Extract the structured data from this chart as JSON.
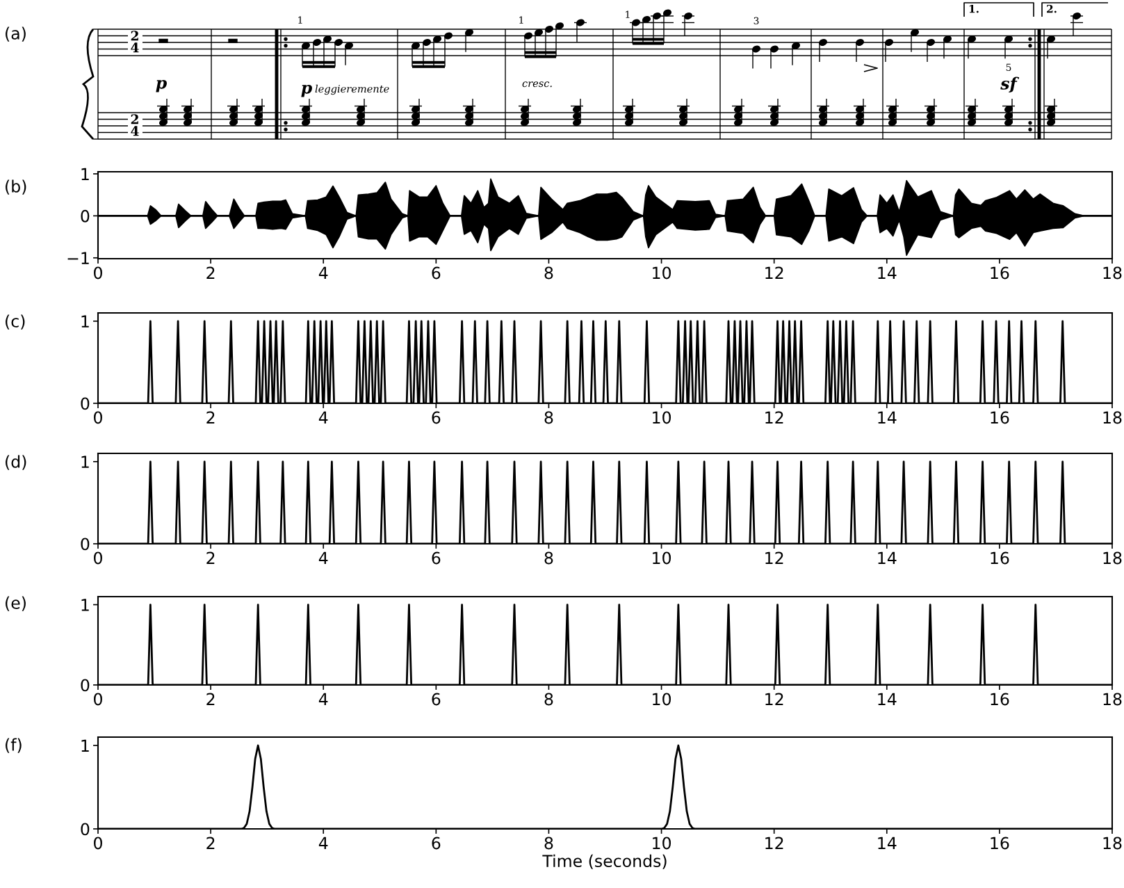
{
  "chart_data": [
    {
      "type": "other",
      "title": "(a)",
      "annotations": [
        "2",
        "4",
        "2",
        "4",
        "p",
        "p",
        "leggieremente",
        "cresc.",
        "sf",
        "1",
        "1",
        "1",
        "3",
        "5",
        "1.",
        "2."
      ]
    },
    {
      "type": "line",
      "title": "(b)",
      "xlim": [
        0,
        18
      ],
      "xticks": [
        0,
        2,
        4,
        6,
        8,
        10,
        12,
        14,
        16,
        18
      ],
      "ylim": [
        -1.02,
        1.05
      ],
      "yticks": [
        {
          "value": -1,
          "label": "−1"
        },
        0,
        1
      ],
      "x": [
        0,
        0.88,
        0.93,
        1.02,
        1.12,
        1.38,
        1.43,
        1.55,
        1.65,
        1.86,
        1.91,
        2.02,
        2.12,
        2.33,
        2.41,
        2.52,
        2.6,
        2.8,
        2.84,
        2.95,
        3.1,
        3.25,
        3.33,
        3.45,
        3.68,
        3.72,
        3.9,
        4.05,
        4.17,
        4.28,
        4.42,
        4.58,
        4.62,
        4.8,
        4.95,
        5.1,
        5.2,
        5.4,
        5.5,
        5.53,
        5.7,
        5.85,
        6.0,
        6.12,
        6.25,
        6.45,
        6.5,
        6.62,
        6.74,
        6.85,
        6.93,
        6.97,
        7.1,
        7.3,
        7.46,
        7.6,
        7.82,
        7.86,
        8.05,
        8.25,
        8.33,
        8.55,
        8.7,
        8.85,
        9.04,
        9.2,
        9.3,
        9.5,
        9.68,
        9.72,
        9.77,
        9.9,
        10.2,
        10.28,
        10.6,
        10.85,
        10.96,
        11.13,
        11.17,
        11.45,
        11.63,
        11.75,
        11.85,
        12.0,
        12.04,
        12.3,
        12.49,
        12.62,
        12.72,
        12.92,
        12.97,
        13.2,
        13.41,
        13.55,
        13.65,
        13.83,
        13.88,
        14.0,
        14.11,
        14.22,
        14.3,
        14.35,
        14.55,
        14.79,
        14.95,
        15.18,
        15.22,
        15.28,
        15.5,
        15.67,
        15.75,
        15.95,
        16.18,
        16.3,
        16.45,
        16.6,
        16.72,
        16.95,
        17.13,
        17.34,
        17.5,
        18
      ],
      "series": [
        {
          "color": "#000000",
          "values": [
            0,
            0,
            0,
            0,
            0,
            0,
            0,
            0,
            0,
            0,
            0,
            0,
            0,
            0,
            0,
            0,
            0,
            0,
            0,
            0,
            0,
            0,
            0,
            0,
            0,
            0,
            0,
            0,
            0,
            0,
            0,
            0,
            0,
            0,
            0,
            0,
            0,
            0,
            0,
            0,
            0,
            0,
            0,
            0,
            0,
            0,
            0,
            0,
            0,
            0,
            0,
            0,
            0,
            0,
            0,
            0,
            0,
            0,
            0,
            0,
            0,
            0,
            0,
            0,
            0,
            0,
            0,
            0,
            0,
            0,
            0,
            0,
            0,
            0,
            0,
            0,
            0,
            0,
            0,
            0,
            0,
            0,
            0,
            0,
            0,
            0,
            0,
            0,
            0,
            0,
            0,
            0,
            0,
            0,
            0,
            0,
            0,
            0,
            0,
            0,
            0,
            0,
            0,
            0,
            0,
            0,
            0,
            0,
            0,
            0,
            0,
            0,
            0,
            0,
            0,
            0,
            0,
            0,
            0,
            0,
            0,
            0
          ],
          "upper": [
            0,
            0,
            0.24,
            0.15,
            0,
            0,
            0.28,
            0.12,
            0,
            0,
            0.34,
            0.15,
            0,
            0,
            0.4,
            0.15,
            0,
            0,
            0.3,
            0.33,
            0.35,
            0.35,
            0.38,
            0.05,
            0,
            0.36,
            0.38,
            0.45,
            0.71,
            0.45,
            0.08,
            0,
            0.5,
            0.52,
            0.55,
            0.8,
            0.4,
            0.05,
            0,
            0.6,
            0.45,
            0.45,
            0.72,
            0.3,
            0,
            0,
            0.48,
            0.3,
            0.6,
            0.2,
            0.3,
            0.88,
            0.45,
            0.3,
            0.48,
            0.06,
            0,
            0.68,
            0.4,
            0.15,
            0.3,
            0.36,
            0.44,
            0.52,
            0.52,
            0.56,
            0.44,
            0.1,
            0,
            0.5,
            0.72,
            0.45,
            0.15,
            0.36,
            0.34,
            0.36,
            0.04,
            0,
            0.36,
            0.4,
            0.68,
            0.2,
            0,
            0,
            0.4,
            0.48,
            0.76,
            0.35,
            0,
            0,
            0.64,
            0.48,
            0.67,
            0.15,
            0,
            0,
            0.5,
            0.3,
            0.5,
            0.1,
            0.5,
            0.84,
            0.45,
            0.6,
            0.1,
            0,
            0.5,
            0.64,
            0.3,
            0.25,
            0.36,
            0.44,
            0.6,
            0.4,
            0.62,
            0.4,
            0.52,
            0.3,
            0.24,
            0.05,
            0,
            0
          ],
          "lower": [
            0,
            0,
            -0.2,
            -0.12,
            0,
            0,
            -0.28,
            -0.12,
            0,
            0,
            -0.3,
            -0.15,
            0,
            0,
            -0.3,
            -0.12,
            0,
            0,
            -0.3,
            -0.3,
            -0.32,
            -0.3,
            -0.32,
            -0.05,
            0,
            -0.3,
            -0.35,
            -0.45,
            -0.76,
            -0.5,
            -0.08,
            0,
            -0.5,
            -0.55,
            -0.55,
            -0.79,
            -0.45,
            -0.05,
            0,
            -0.6,
            -0.5,
            -0.5,
            -0.68,
            -0.35,
            0,
            0,
            -0.44,
            -0.35,
            -0.64,
            -0.2,
            -0.3,
            -0.83,
            -0.5,
            -0.3,
            -0.44,
            -0.06,
            0,
            -0.56,
            -0.4,
            -0.15,
            -0.3,
            -0.4,
            -0.5,
            -0.58,
            -0.58,
            -0.55,
            -0.5,
            -0.1,
            0,
            -0.5,
            -0.76,
            -0.45,
            -0.15,
            -0.3,
            -0.34,
            -0.32,
            -0.04,
            0,
            -0.36,
            -0.42,
            -0.64,
            -0.2,
            0,
            0,
            -0.45,
            -0.5,
            -0.68,
            -0.35,
            0,
            0,
            -0.6,
            -0.5,
            -0.66,
            -0.15,
            0,
            0,
            -0.4,
            -0.3,
            -0.48,
            -0.1,
            -0.5,
            -0.94,
            -0.45,
            -0.52,
            -0.1,
            0,
            -0.45,
            -0.52,
            -0.3,
            -0.25,
            -0.36,
            -0.42,
            -0.56,
            -0.4,
            -0.72,
            -0.4,
            -0.36,
            -0.3,
            -0.28,
            -0.05,
            0,
            0
          ]
        }
      ]
    },
    {
      "type": "line",
      "title": "(c)",
      "xlim": [
        0,
        18
      ],
      "xticks": [
        0,
        2,
        4,
        6,
        8,
        10,
        12,
        14,
        16,
        18
      ],
      "ylim": [
        0,
        1.1
      ],
      "yticks": [
        0,
        1
      ],
      "x": [
        0,
        0.89,
        0.93,
        0.97,
        1.38,
        1.42,
        1.46,
        1.85,
        1.89,
        1.93,
        2.32,
        2.36,
        2.4,
        2.8,
        2.84,
        2.88,
        2.91,
        2.95,
        2.99,
        3.02,
        3.06,
        3.1,
        3.12,
        3.16,
        3.2,
        3.24,
        3.28,
        3.32,
        3.69,
        3.73,
        3.77,
        3.8,
        3.84,
        3.88,
        3.91,
        3.95,
        3.99,
        4.01,
        4.05,
        4.09,
        4.11,
        4.15,
        4.19,
        4.58,
        4.62,
        4.66,
        4.69,
        4.73,
        4.77,
        4.8,
        4.84,
        4.88,
        4.91,
        4.95,
        4.99,
        5.02,
        5.06,
        5.1,
        5.48,
        5.52,
        5.56,
        5.6,
        5.64,
        5.68,
        5.7,
        5.74,
        5.78,
        5.82,
        5.86,
        5.9,
        5.93,
        5.97,
        6.01,
        6.42,
        6.46,
        6.5,
        6.65,
        6.69,
        6.73,
        6.87,
        6.91,
        6.95,
        7.12,
        7.16,
        7.2,
        7.35,
        7.39,
        7.43,
        7.82,
        7.86,
        7.9,
        8.29,
        8.33,
        8.37,
        8.54,
        8.58,
        8.62,
        8.75,
        8.79,
        8.83,
        8.97,
        9.01,
        9.05,
        9.21,
        9.25,
        9.29,
        9.7,
        9.74,
        9.78,
        10.26,
        10.3,
        10.34,
        10.38,
        10.42,
        10.46,
        10.48,
        10.52,
        10.56,
        10.6,
        10.64,
        10.68,
        10.72,
        10.76,
        10.8,
        11.15,
        11.19,
        11.23,
        11.26,
        11.3,
        11.34,
        11.36,
        11.4,
        11.44,
        11.47,
        11.51,
        11.55,
        11.57,
        11.61,
        11.65,
        12.02,
        12.06,
        12.1,
        12.12,
        12.16,
        12.2,
        12.23,
        12.27,
        12.31,
        12.33,
        12.37,
        12.41,
        12.44,
        12.48,
        12.52,
        12.91,
        12.95,
        12.99,
        13.01,
        13.05,
        13.09,
        13.13,
        13.17,
        13.21,
        13.24,
        13.28,
        13.32,
        13.36,
        13.4,
        13.44,
        13.8,
        13.84,
        13.88,
        14.02,
        14.06,
        14.1,
        14.26,
        14.3,
        14.34,
        14.49,
        14.53,
        14.57,
        14.73,
        14.77,
        14.81,
        15.19,
        15.23,
        15.27,
        15.66,
        15.7,
        15.74,
        15.9,
        15.94,
        15.98,
        16.13,
        16.17,
        16.21,
        16.35,
        16.39,
        16.43,
        16.6,
        16.64,
        16.68,
        17.08,
        17.12,
        17.16,
        18
      ],
      "series": [
        {
          "color": "#000000",
          "values": [
            0,
            0,
            1,
            0,
            0,
            1,
            0,
            0,
            1,
            0,
            0,
            1,
            0,
            0,
            1,
            0,
            0,
            1,
            0,
            0,
            1,
            0,
            0,
            1,
            0,
            0,
            1,
            0,
            0,
            1,
            0,
            0,
            1,
            0,
            0,
            1,
            0,
            0,
            1,
            0,
            0,
            1,
            0,
            0,
            1,
            0,
            0,
            1,
            0,
            0,
            1,
            0,
            0,
            1,
            0,
            0,
            1,
            0,
            0,
            1,
            0,
            0,
            1,
            0,
            0,
            1,
            0,
            0,
            1,
            0,
            0,
            1,
            0,
            0,
            1,
            0,
            0,
            1,
            0,
            0,
            1,
            0,
            0,
            1,
            0,
            0,
            1,
            0,
            0,
            1,
            0,
            0,
            1,
            0,
            0,
            1,
            0,
            0,
            1,
            0,
            0,
            1,
            0,
            0,
            1,
            0,
            0,
            1,
            0,
            0,
            1,
            0,
            0,
            1,
            0,
            0,
            1,
            0,
            0,
            1,
            0,
            0,
            1,
            0,
            0,
            1,
            0,
            0,
            1,
            0,
            0,
            1,
            0,
            0,
            1,
            0,
            0,
            1,
            0,
            0,
            1,
            0,
            0,
            1,
            0,
            0,
            1,
            0,
            0,
            1,
            0,
            0,
            1,
            0,
            0,
            1,
            0,
            0,
            1,
            0,
            0,
            1,
            0,
            0,
            1,
            0,
            0,
            1,
            0,
            0,
            1,
            0,
            0,
            1,
            0,
            0,
            1,
            0,
            0,
            1,
            0,
            0,
            1,
            0,
            0,
            1,
            0,
            0,
            1,
            0,
            0,
            1,
            0,
            0,
            1,
            0,
            0,
            1,
            0,
            0,
            1,
            0,
            0,
            1,
            0,
            0
          ]
        }
      ]
    },
    {
      "type": "line",
      "title": "(d)",
      "xlim": [
        0,
        18
      ],
      "xticks": [
        0,
        2,
        4,
        6,
        8,
        10,
        12,
        14,
        16,
        18
      ],
      "ylim": [
        0,
        1.1
      ],
      "yticks": [
        0,
        1
      ],
      "x": [
        0,
        0.89,
        0.93,
        0.97,
        1.38,
        1.42,
        1.46,
        1.85,
        1.89,
        1.93,
        2.32,
        2.36,
        2.4,
        2.8,
        2.84,
        2.88,
        3.24,
        3.28,
        3.32,
        3.69,
        3.73,
        3.77,
        4.11,
        4.15,
        4.19,
        4.58,
        4.62,
        4.66,
        5.02,
        5.06,
        5.1,
        5.48,
        5.52,
        5.56,
        5.93,
        5.97,
        6.01,
        6.42,
        6.46,
        6.5,
        6.87,
        6.91,
        6.95,
        7.35,
        7.39,
        7.43,
        7.82,
        7.86,
        7.9,
        8.29,
        8.33,
        8.37,
        8.75,
        8.79,
        8.83,
        9.21,
        9.25,
        9.29,
        9.7,
        9.74,
        9.78,
        10.26,
        10.3,
        10.34,
        10.72,
        10.76,
        10.8,
        11.15,
        11.19,
        11.23,
        11.57,
        11.61,
        11.65,
        12.02,
        12.06,
        12.1,
        12.44,
        12.48,
        12.52,
        12.91,
        12.95,
        12.99,
        13.36,
        13.4,
        13.44,
        13.8,
        13.84,
        13.88,
        14.26,
        14.3,
        14.34,
        14.73,
        14.77,
        14.81,
        15.19,
        15.23,
        15.27,
        15.66,
        15.7,
        15.74,
        16.13,
        16.17,
        16.21,
        16.6,
        16.64,
        16.68,
        17.08,
        17.12,
        17.16,
        18
      ],
      "series": [
        {
          "color": "#000000",
          "values": [
            0,
            0,
            1,
            0,
            0,
            1,
            0,
            0,
            1,
            0,
            0,
            1,
            0,
            0,
            1,
            0,
            0,
            1,
            0,
            0,
            1,
            0,
            0,
            1,
            0,
            0,
            1,
            0,
            0,
            1,
            0,
            0,
            1,
            0,
            0,
            1,
            0,
            0,
            1,
            0,
            0,
            1,
            0,
            0,
            1,
            0,
            0,
            1,
            0,
            0,
            1,
            0,
            0,
            1,
            0,
            0,
            1,
            0,
            0,
            1,
            0,
            0,
            1,
            0,
            0,
            1,
            0,
            0,
            1,
            0,
            0,
            1,
            0,
            0,
            1,
            0,
            0,
            1,
            0,
            0,
            1,
            0,
            0,
            1,
            0,
            0,
            1,
            0,
            0,
            1,
            0,
            0,
            1,
            0,
            0,
            1,
            0,
            0,
            1,
            0,
            0,
            1,
            0,
            0,
            1,
            0,
            0,
            1,
            0,
            0
          ]
        }
      ]
    },
    {
      "type": "line",
      "title": "(e)",
      "xlim": [
        0,
        18
      ],
      "xticks": [
        0,
        2,
        4,
        6,
        8,
        10,
        12,
        14,
        16,
        18
      ],
      "ylim": [
        0,
        1.1
      ],
      "yticks": [
        0,
        1
      ],
      "x": [
        0,
        0.89,
        0.93,
        0.97,
        1.85,
        1.89,
        1.93,
        2.8,
        2.84,
        2.88,
        3.69,
        3.73,
        3.77,
        4.58,
        4.62,
        4.66,
        5.48,
        5.52,
        5.56,
        6.42,
        6.46,
        6.5,
        7.35,
        7.39,
        7.43,
        8.29,
        8.33,
        8.37,
        9.21,
        9.25,
        9.29,
        10.26,
        10.3,
        10.34,
        11.15,
        11.19,
        11.23,
        12.02,
        12.06,
        12.1,
        12.91,
        12.95,
        12.99,
        13.8,
        13.84,
        13.88,
        14.73,
        14.77,
        14.81,
        15.66,
        15.7,
        15.74,
        16.6,
        16.64,
        16.68,
        18
      ],
      "series": [
        {
          "color": "#000000",
          "values": [
            0,
            0,
            1,
            0,
            0,
            1,
            0,
            0,
            1,
            0,
            0,
            1,
            0,
            0,
            1,
            0,
            0,
            1,
            0,
            0,
            1,
            0,
            0,
            1,
            0,
            0,
            1,
            0,
            0,
            1,
            0,
            0,
            1,
            0,
            0,
            1,
            0,
            0,
            1,
            0,
            0,
            1,
            0,
            0,
            1,
            0,
            0,
            1,
            0,
            0,
            1,
            0,
            0,
            1,
            0,
            0
          ]
        }
      ]
    },
    {
      "type": "line",
      "title": "(f)",
      "xlabel": "Time (seconds)",
      "xlim": [
        0,
        18
      ],
      "xticks": [
        0,
        2,
        4,
        6,
        8,
        10,
        12,
        14,
        16,
        18
      ],
      "ylim": [
        0,
        1.1
      ],
      "yticks": [
        0,
        1
      ],
      "x": [
        0,
        2.54,
        2.59,
        2.64,
        2.69,
        2.74,
        2.79,
        2.84,
        2.89,
        2.94,
        2.99,
        3.04,
        3.09,
        3.14,
        10.0,
        10.05,
        10.1,
        10.15,
        10.2,
        10.25,
        10.3,
        10.35,
        10.4,
        10.45,
        10.5,
        10.55,
        10.6,
        18
      ],
      "series": [
        {
          "color": "#000000",
          "values": [
            0,
            0,
            0.01,
            0.06,
            0.21,
            0.5,
            0.84,
            1,
            0.84,
            0.5,
            0.21,
            0.06,
            0.01,
            0,
            0,
            0.01,
            0.06,
            0.21,
            0.5,
            0.84,
            1,
            0.84,
            0.5,
            0.21,
            0.06,
            0.01,
            0,
            0
          ]
        }
      ]
    }
  ]
}
